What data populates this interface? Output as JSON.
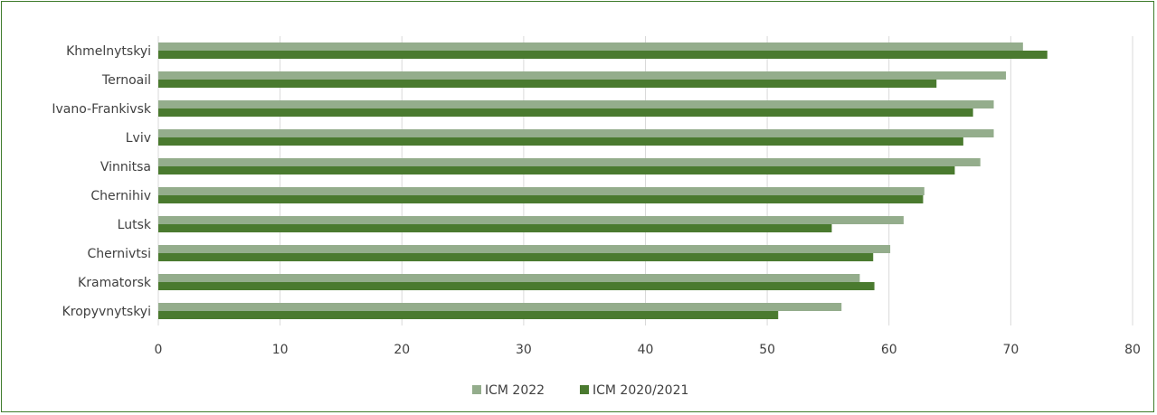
{
  "chart_data": {
    "type": "bar",
    "orientation": "horizontal",
    "categories": [
      "Khmelnytskyi",
      "Ternoail",
      "Ivano-Frankivsk",
      "Lviv",
      "Vinnitsa",
      "Chernihiv",
      "Lutsk",
      "Chernivtsi",
      "Kramatorsk",
      "Kropyvnytskyi"
    ],
    "series": [
      {
        "name": "ICM 2022",
        "color": "#94ad8c",
        "values": [
          71.0,
          69.6,
          68.6,
          68.6,
          67.5,
          62.9,
          61.2,
          60.1,
          57.6,
          56.1
        ]
      },
      {
        "name": "ICM 2020/2021",
        "color": "#4a7a2f",
        "values": [
          73.0,
          63.9,
          66.9,
          66.1,
          65.4,
          62.8,
          55.3,
          58.7,
          58.8,
          50.9
        ]
      }
    ],
    "xlim": [
      0,
      80
    ],
    "xticks": [
      0,
      10,
      20,
      30,
      40,
      50,
      60,
      70,
      80
    ],
    "grid": true,
    "legend_position": "bottom"
  }
}
